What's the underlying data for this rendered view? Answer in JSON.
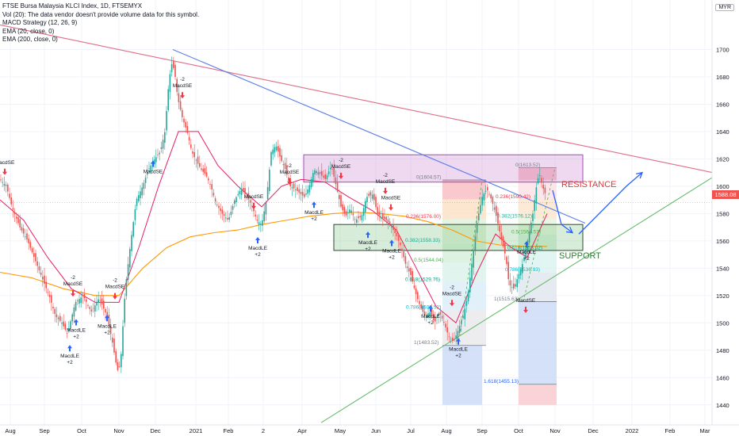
{
  "legend": {
    "title": "FTSE Bursa Malaysia KLCI Index, 1D, FTSEMYX",
    "lines": [
      "Vol (20): The data vendor doesn't provide volume data for this symbol.",
      "MACD Strategy (12, 26, 9)",
      "EMA (20, close, 0)",
      "EMA (200, close, 0)"
    ]
  },
  "currency": "MYR",
  "last_price": "1588.08",
  "annotations": {
    "resistance": "RESISTANCE",
    "support": "SUPPORT"
  },
  "fib_labels": [
    {
      "text": "0(1613.52)",
      "price": 1613.52,
      "x": 650,
      "color": "#787b86"
    },
    {
      "text": "0(1604.57)",
      "price": 1604.57,
      "x": 525,
      "color": "#787b86"
    },
    {
      "text": "0.236(1590.42)",
      "price": 1590.42,
      "x": 625,
      "color": "#f23645"
    },
    {
      "text": "0.236(1576.00)",
      "price": 1576.0,
      "x": 512,
      "color": "#f23645"
    },
    {
      "text": "0.382(1576.12)",
      "price": 1576.12,
      "x": 627,
      "color": "#22ab94"
    },
    {
      "text": "0.5(1564.57)",
      "price": 1564.57,
      "x": 645,
      "color": "#4caf50"
    },
    {
      "text": "0.382(1558.33)",
      "price": 1558.33,
      "x": 511,
      "color": "#22ab94"
    },
    {
      "text": "0.618(1553.02)",
      "price": 1553.02,
      "x": 640,
      "color": "#089981"
    },
    {
      "text": "0.5(1544.04)",
      "price": 1544.04,
      "x": 522,
      "color": "#4caf50"
    },
    {
      "text": "0.786(1536.93)",
      "price": 1536.93,
      "x": 637,
      "color": "#00bcd4"
    },
    {
      "text": "0.618(1529.76)",
      "price": 1529.76,
      "x": 511,
      "color": "#089981"
    },
    {
      "text": "1(1515.63)",
      "price": 1515.63,
      "x": 623,
      "color": "#787b86"
    },
    {
      "text": "0.786(1509.52)",
      "price": 1509.52,
      "x": 512,
      "color": "#00bcd4"
    },
    {
      "text": "1(1483.52)",
      "price": 1483.52,
      "x": 522,
      "color": "#787b86"
    },
    {
      "text": "1.618(1455.13)",
      "price": 1455.13,
      "x": 610,
      "color": "#2962ff"
    }
  ],
  "macd_labels": [
    {
      "lines": [
        "MacdLE",
        "+2"
      ],
      "x": 88,
      "price": 1478,
      "arrow": "up"
    },
    {
      "lines": [
        "MacdLE",
        "+2"
      ],
      "x": 96,
      "price": 1497,
      "arrow": "up"
    },
    {
      "lines": [
        "MacdLE",
        "+2"
      ],
      "x": 135,
      "price": 1500,
      "arrow": "up"
    },
    {
      "lines": [
        "-2",
        "MacdSE"
      ],
      "x": 92,
      "price": 1525,
      "arrow": "down"
    },
    {
      "lines": [
        "-2",
        "MacdSE"
      ],
      "x": 145,
      "price": 1523,
      "arrow": "down"
    },
    {
      "lines": [
        "MacdSE"
      ],
      "x": 6,
      "price": 1614,
      "arrow": "down"
    },
    {
      "lines": [
        "MacdSE"
      ],
      "x": 193,
      "price": 1613,
      "arrow": "up"
    },
    {
      "lines": [
        "-2",
        "MacdSE"
      ],
      "x": 230,
      "price": 1670,
      "arrow": "down"
    },
    {
      "lines": [
        "MacdSE"
      ],
      "x": 320,
      "price": 1589,
      "arrow": "down"
    },
    {
      "lines": [
        "MacdLE",
        "+2"
      ],
      "x": 325,
      "price": 1557,
      "arrow": "up"
    },
    {
      "lines": [
        "-2",
        "MacdSE"
      ],
      "x": 365,
      "price": 1607,
      "arrow": "down"
    },
    {
      "lines": [
        "MacdLE",
        "+2"
      ],
      "x": 396,
      "price": 1583,
      "arrow": "up"
    },
    {
      "lines": [
        "-2",
        "MacdSE"
      ],
      "x": 430,
      "price": 1611,
      "arrow": "down"
    },
    {
      "lines": [
        "MacdLE",
        "+2"
      ],
      "x": 464,
      "price": 1561,
      "arrow": "up"
    },
    {
      "lines": [
        "MacdSE"
      ],
      "x": 493,
      "price": 1588,
      "arrow": "down"
    },
    {
      "lines": [
        "-2",
        "MacdSE"
      ],
      "x": 486,
      "price": 1600,
      "arrow": "down"
    },
    {
      "lines": [
        "MacdLE",
        "+2"
      ],
      "x": 494,
      "price": 1555,
      "arrow": "up"
    },
    {
      "lines": [
        "MacdLE",
        "+2"
      ],
      "x": 543,
      "price": 1507,
      "arrow": "up"
    },
    {
      "lines": [
        "-2",
        "MacdSE"
      ],
      "x": 570,
      "price": 1518,
      "arrow": "down"
    },
    {
      "lines": [
        "MacdLE",
        "+2"
      ],
      "x": 578,
      "price": 1483,
      "arrow": "up"
    },
    {
      "lines": [
        "MacdLE",
        "+2"
      ],
      "x": 664,
      "price": 1554,
      "arrow": "up"
    },
    {
      "lines": [
        "MacdSE"
      ],
      "x": 663,
      "price": 1513,
      "arrow": "down"
    }
  ],
  "chart_data": {
    "type": "candlestick",
    "symbol": "FTSE Bursa Malaysia KLCI Index, 1D, FTSEMYX",
    "yaxis": {
      "min": 1430,
      "max": 1720,
      "ticks": [
        1440,
        1460,
        1480,
        1500,
        1520,
        1540,
        1560,
        1580,
        1600,
        1620,
        1640,
        1660,
        1680,
        1700
      ]
    },
    "xaxis": {
      "ticks": [
        {
          "label": "Aug",
          "x": 13
        },
        {
          "label": "Sep",
          "x": 56
        },
        {
          "label": "Oct",
          "x": 103
        },
        {
          "label": "Nov",
          "x": 150
        },
        {
          "label": "Dec",
          "x": 196
        },
        {
          "label": "2021",
          "x": 247
        },
        {
          "label": "Feb",
          "x": 288
        },
        {
          "label": "2",
          "x": 332
        },
        {
          "label": "Apr",
          "x": 381
        },
        {
          "label": "May",
          "x": 429
        },
        {
          "label": "Jun",
          "x": 474
        },
        {
          "label": "Jul",
          "x": 518
        },
        {
          "label": "Aug",
          "x": 563
        },
        {
          "label": "Sep",
          "x": 608
        },
        {
          "label": "Oct",
          "x": 654
        },
        {
          "label": "Nov",
          "x": 700
        },
        {
          "label": "Dec",
          "x": 748
        },
        {
          "label": "2022",
          "x": 797
        },
        {
          "label": "Feb",
          "x": 845
        },
        {
          "label": "Mar",
          "x": 889
        }
      ]
    },
    "price_path": [
      [
        0,
        1605
      ],
      [
        8,
        1600
      ],
      [
        15,
        1585
      ],
      [
        25,
        1570
      ],
      [
        35,
        1560
      ],
      [
        45,
        1545
      ],
      [
        55,
        1530
      ],
      [
        62,
        1520
      ],
      [
        70,
        1505
      ],
      [
        78,
        1500
      ],
      [
        85,
        1492
      ],
      [
        95,
        1515
      ],
      [
        105,
        1520
      ],
      [
        115,
        1508
      ],
      [
        125,
        1518
      ],
      [
        135,
        1505
      ],
      [
        142,
        1485
      ],
      [
        148,
        1465
      ],
      [
        152,
        1470
      ],
      [
        158,
        1525
      ],
      [
        165,
        1560
      ],
      [
        172,
        1590
      ],
      [
        180,
        1600
      ],
      [
        187,
        1612
      ],
      [
        195,
        1620
      ],
      [
        202,
        1625
      ],
      [
        208,
        1640
      ],
      [
        212,
        1670
      ],
      [
        216,
        1690
      ],
      [
        220,
        1685
      ],
      [
        224,
        1665
      ],
      [
        230,
        1650
      ],
      [
        236,
        1640
      ],
      [
        242,
        1625
      ],
      [
        248,
        1618
      ],
      [
        254,
        1612
      ],
      [
        260,
        1608
      ],
      [
        266,
        1600
      ],
      [
        272,
        1588
      ],
      [
        280,
        1580
      ],
      [
        288,
        1575
      ],
      [
        296,
        1590
      ],
      [
        304,
        1598
      ],
      [
        312,
        1592
      ],
      [
        318,
        1585
      ],
      [
        324,
        1575
      ],
      [
        330,
        1572
      ],
      [
        336,
        1590
      ],
      [
        342,
        1625
      ],
      [
        348,
        1630
      ],
      [
        354,
        1620
      ],
      [
        360,
        1612
      ],
      [
        366,
        1600
      ],
      [
        372,
        1598
      ],
      [
        378,
        1595
      ],
      [
        384,
        1592
      ],
      [
        390,
        1600
      ],
      [
        396,
        1612
      ],
      [
        402,
        1610
      ],
      [
        410,
        1605
      ],
      [
        418,
        1615
      ],
      [
        424,
        1600
      ],
      [
        430,
        1585
      ],
      [
        436,
        1578
      ],
      [
        442,
        1584
      ],
      [
        448,
        1575
      ],
      [
        456,
        1578
      ],
      [
        462,
        1592
      ],
      [
        470,
        1594
      ],
      [
        476,
        1580
      ],
      [
        482,
        1577
      ],
      [
        488,
        1575
      ],
      [
        494,
        1570
      ],
      [
        500,
        1564
      ],
      [
        506,
        1555
      ],
      [
        512,
        1542
      ],
      [
        518,
        1535
      ],
      [
        524,
        1522
      ],
      [
        530,
        1512
      ],
      [
        536,
        1505
      ],
      [
        542,
        1508
      ],
      [
        548,
        1500
      ],
      [
        554,
        1508
      ],
      [
        560,
        1500
      ],
      [
        566,
        1490
      ],
      [
        572,
        1486
      ],
      [
        578,
        1495
      ],
      [
        584,
        1505
      ],
      [
        590,
        1520
      ],
      [
        596,
        1548
      ],
      [
        602,
        1575
      ],
      [
        608,
        1592
      ],
      [
        614,
        1598
      ],
      [
        620,
        1590
      ],
      [
        626,
        1578
      ],
      [
        632,
        1562
      ],
      [
        638,
        1548
      ],
      [
        642,
        1528
      ],
      [
        648,
        1525
      ],
      [
        654,
        1535
      ],
      [
        660,
        1545
      ],
      [
        666,
        1562
      ],
      [
        672,
        1580
      ],
      [
        676,
        1598
      ],
      [
        680,
        1610
      ],
      [
        684,
        1600
      ],
      [
        688,
        1594
      ]
    ],
    "ema20_path": [
      [
        0,
        1590
      ],
      [
        30,
        1575
      ],
      [
        60,
        1548
      ],
      [
        90,
        1525
      ],
      [
        120,
        1515
      ],
      [
        150,
        1515
      ],
      [
        175,
        1555
      ],
      [
        200,
        1600
      ],
      [
        225,
        1640
      ],
      [
        250,
        1640
      ],
      [
        275,
        1615
      ],
      [
        300,
        1600
      ],
      [
        330,
        1585
      ],
      [
        355,
        1600
      ],
      [
        380,
        1605
      ],
      [
        410,
        1603
      ],
      [
        440,
        1592
      ],
      [
        470,
        1582
      ],
      [
        500,
        1568
      ],
      [
        525,
        1540
      ],
      [
        550,
        1512
      ],
      [
        575,
        1500
      ],
      [
        600,
        1535
      ],
      [
        625,
        1565
      ],
      [
        645,
        1555
      ],
      [
        665,
        1548
      ],
      [
        690,
        1580
      ]
    ],
    "ema200_path": [
      [
        0,
        1537
      ],
      [
        40,
        1533
      ],
      [
        80,
        1525
      ],
      [
        120,
        1520
      ],
      [
        150,
        1520
      ],
      [
        180,
        1540
      ],
      [
        210,
        1555
      ],
      [
        240,
        1563
      ],
      [
        270,
        1566
      ],
      [
        300,
        1568
      ],
      [
        330,
        1572
      ],
      [
        360,
        1575
      ],
      [
        390,
        1578
      ],
      [
        420,
        1580
      ],
      [
        450,
        1581
      ],
      [
        480,
        1580
      ],
      [
        510,
        1578
      ],
      [
        540,
        1574
      ],
      [
        570,
        1568
      ],
      [
        600,
        1560
      ],
      [
        630,
        1557
      ],
      [
        660,
        1556
      ],
      [
        690,
        1556
      ]
    ],
    "resistance_zone": {
      "x_start": 383,
      "x_end": 735,
      "price_top": 1623,
      "price_bottom": 1603
    },
    "support_zone": {
      "x_start": 421,
      "x_end": 735,
      "price_top": 1572,
      "price_bottom": 1553
    },
    "trendlines": [
      {
        "name": "red-trendline",
        "color": "#e06b85",
        "p1": [
          0,
          1718
        ],
        "p2": [
          932,
          1606
        ]
      },
      {
        "name": "blue-trendline",
        "color": "#5b7ee8",
        "p1": [
          218,
          1700
        ],
        "p2": [
          738,
          1573
        ]
      },
      {
        "name": "green-trendline",
        "color": "#66bb6a",
        "p1": [
          405,
          1427
        ],
        "p2": [
          900,
          1607
        ]
      }
    ],
    "projection_arrows": [
      {
        "name": "down-projection-arrow",
        "points": [
          [
            697,
            1597
          ],
          [
            708,
            1572
          ],
          [
            722,
            1566
          ]
        ]
      },
      {
        "name": "up-projection-arrow",
        "points": [
          [
            730,
            1565
          ],
          [
            790,
            1600
          ],
          [
            810,
            1610
          ]
        ]
      }
    ],
    "last_price": 1588.08
  }
}
